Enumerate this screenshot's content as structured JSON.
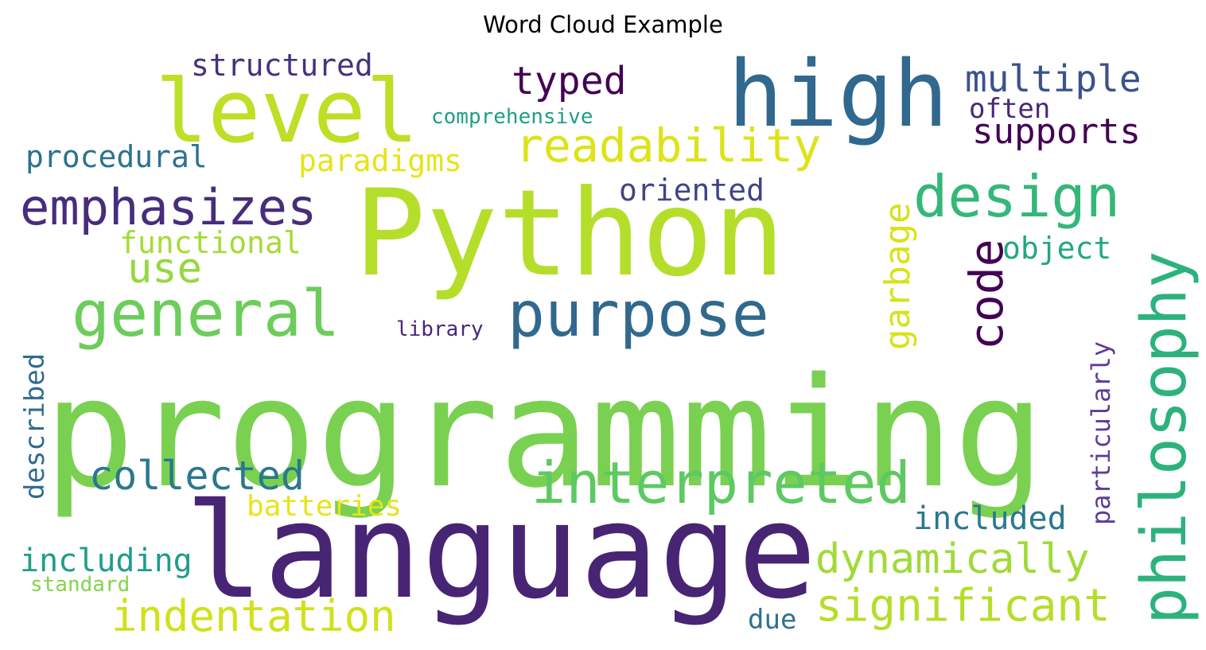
{
  "title": "Word Cloud Example",
  "words": [
    {
      "text": "programming",
      "color": "#7ad151"
    },
    {
      "text": "Python",
      "color": "#b5de2b"
    },
    {
      "text": "language",
      "color": "#482475"
    },
    {
      "text": "high",
      "color": "#31688e"
    },
    {
      "text": "level",
      "color": "#bddf26"
    },
    {
      "text": "general",
      "color": "#6ccd5a"
    },
    {
      "text": "purpose",
      "color": "#31688e"
    },
    {
      "text": "interpreted",
      "color": "#5ec962"
    },
    {
      "text": "philosophy",
      "color": "#2db27d"
    },
    {
      "text": "design",
      "color": "#35b779"
    },
    {
      "text": "code",
      "color": "#440154"
    },
    {
      "text": "emphasizes",
      "color": "#472d7b"
    },
    {
      "text": "readability",
      "color": "#dde318"
    },
    {
      "text": "significant",
      "color": "#b5de2b"
    },
    {
      "text": "indentation",
      "color": "#d0e11c"
    },
    {
      "text": "dynamically",
      "color": "#a0da39"
    },
    {
      "text": "collected",
      "color": "#2a788e"
    },
    {
      "text": "garbage",
      "color": "#d8e219"
    },
    {
      "text": "typed",
      "color": "#440154"
    },
    {
      "text": "multiple",
      "color": "#3b528b"
    },
    {
      "text": "supports",
      "color": "#440154"
    },
    {
      "text": "paradigms",
      "color": "#e5e419"
    },
    {
      "text": "structured",
      "color": "#46327e"
    },
    {
      "text": "procedural",
      "color": "#2c728e"
    },
    {
      "text": "functional",
      "color": "#a5db36"
    },
    {
      "text": "object",
      "color": "#22a785"
    },
    {
      "text": "oriented",
      "color": "#414487"
    },
    {
      "text": "often",
      "color": "#482878"
    },
    {
      "text": "described",
      "color": "#2f6c8e"
    },
    {
      "text": "particularly",
      "color": "#5e3c99"
    },
    {
      "text": "batteries",
      "color": "#e7e419"
    },
    {
      "text": "included",
      "color": "#2a788e"
    },
    {
      "text": "including",
      "color": "#1f9e89"
    },
    {
      "text": "comprehensive",
      "color": "#1f9e89"
    },
    {
      "text": "standard",
      "color": "#84d44b"
    },
    {
      "text": "library",
      "color": "#482878"
    },
    {
      "text": "use",
      "color": "#95d840"
    },
    {
      "text": "due",
      "color": "#2c728e"
    }
  ]
}
